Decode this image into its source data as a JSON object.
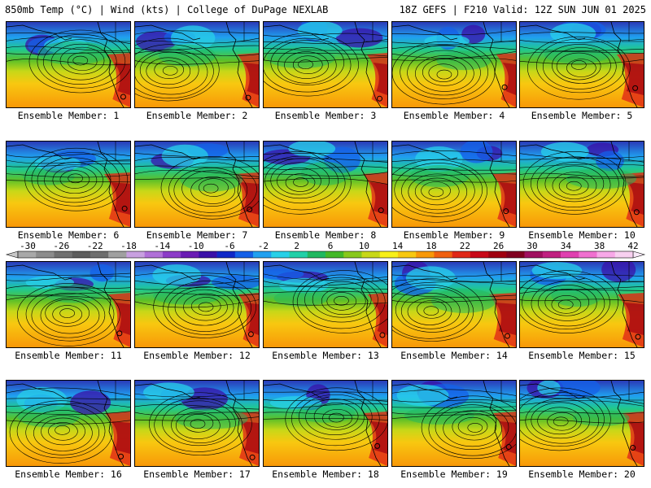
{
  "header": {
    "left_title": "850mb Temp (°C) | Wind (kts) | College of DuPage NEXLAB",
    "right_title": "18Z GEFS | F210 Valid: 12Z SUN JUN 01 2025"
  },
  "colorbar": {
    "labels": [
      "-30",
      "-26",
      "-22",
      "-18",
      "-14",
      "-10",
      "-6",
      "-2",
      "2",
      "6",
      "10",
      "14",
      "18",
      "22",
      "26",
      "30",
      "34",
      "38",
      "42"
    ],
    "colors": [
      "#a8a8a8",
      "#8c8c8c",
      "#707070",
      "#5c5c5c",
      "#6e6e6e",
      "#a0a0a0",
      "#c8a0e0",
      "#b070d8",
      "#8c3cc8",
      "#6a1cb4",
      "#3a10a8",
      "#1028c8",
      "#1460e8",
      "#20a0f0",
      "#28d0e8",
      "#20d0a8",
      "#20b860",
      "#44b828",
      "#88c81c",
      "#c8d818",
      "#f8f018",
      "#f8c810",
      "#f89808",
      "#f06010",
      "#e02818",
      "#c80818",
      "#a00010",
      "#800020",
      "#a01060",
      "#c02080",
      "#e040b0",
      "#f070d0",
      "#f8a8e8",
      "#f8d0f0"
    ]
  },
  "members": [
    {
      "caption": "Ensemble Member: 1"
    },
    {
      "caption": "Ensemble Member: 2"
    },
    {
      "caption": "Ensemble Member: 3"
    },
    {
      "caption": "Ensemble Member: 4"
    },
    {
      "caption": "Ensemble Member: 5"
    },
    {
      "caption": "Ensemble Member: 6"
    },
    {
      "caption": "Ensemble Member: 7"
    },
    {
      "caption": "Ensemble Member: 8"
    },
    {
      "caption": "Ensemble Member: 9"
    },
    {
      "caption": "Ensemble Member: 10"
    },
    {
      "caption": "Ensemble Member: 11"
    },
    {
      "caption": "Ensemble Member: 12"
    },
    {
      "caption": "Ensemble Member: 13"
    },
    {
      "caption": "Ensemble Member: 14"
    },
    {
      "caption": "Ensemble Member: 15"
    },
    {
      "caption": "Ensemble Member: 16"
    },
    {
      "caption": "Ensemble Member: 17"
    },
    {
      "caption": "Ensemble Member: 18"
    },
    {
      "caption": "Ensemble Member: 19"
    },
    {
      "caption": "Ensemble Member: 20"
    }
  ]
}
